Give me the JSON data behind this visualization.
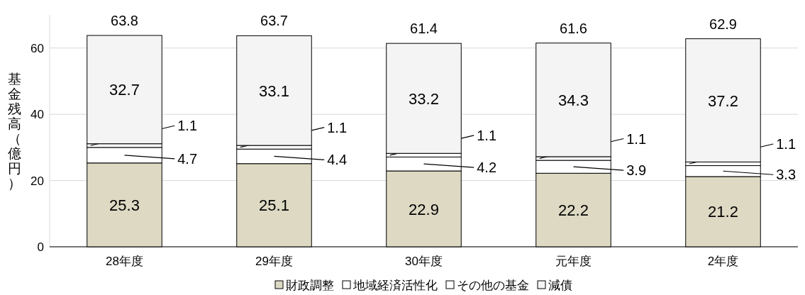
{
  "chart_data": {
    "type": "bar",
    "stacked": true,
    "ylabel": "基金残高（億円）",
    "categories": [
      "28年度",
      "29年度",
      "30年度",
      "元年度",
      "2年度"
    ],
    "series": [
      {
        "name": "財政調整",
        "color": "#ddd9c3",
        "values": [
          25.3,
          25.1,
          22.9,
          22.2,
          21.2
        ]
      },
      {
        "name": "地域経済活性化",
        "color": "#ffffff",
        "values": [
          4.7,
          4.4,
          4.2,
          3.9,
          3.3
        ]
      },
      {
        "name": "その他の基金",
        "color": "#ffffff",
        "values": [
          1.1,
          1.1,
          1.1,
          1.1,
          1.1
        ]
      },
      {
        "name": "減債",
        "color": "#f4f4f4",
        "values": [
          32.7,
          33.1,
          33.2,
          34.3,
          37.2
        ]
      }
    ],
    "totals": [
      "63.8",
      "63.7",
      "61.4",
      "61.6",
      "62.9"
    ],
    "ylim": [
      0,
      70
    ],
    "yticks": [
      0,
      20,
      40,
      60
    ],
    "grid": "y",
    "legend": "bottom",
    "data_labels": true
  }
}
